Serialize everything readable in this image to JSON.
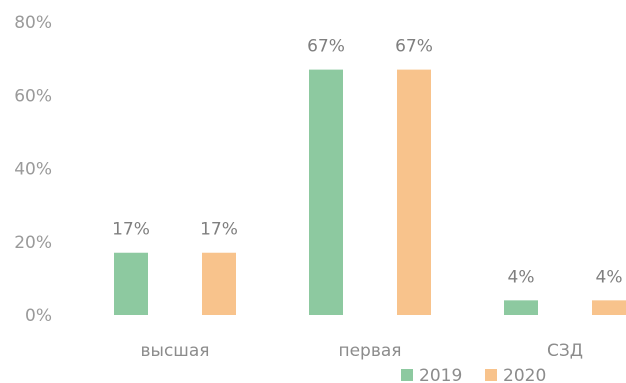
{
  "chart_data": {
    "type": "bar",
    "title": "",
    "xlabel": "",
    "ylabel": "",
    "categories": [
      "высшая",
      "первая",
      "СЗД"
    ],
    "series": [
      {
        "name": "2019",
        "values": [
          17,
          67,
          4
        ],
        "labels": [
          "17%",
          "67%",
          "4%"
        ],
        "color": "#8dc9a0"
      },
      {
        "name": "2020",
        "values": [
          17,
          67,
          4
        ],
        "labels": [
          "17%",
          "67%",
          "4%"
        ],
        "color": "#f8c38c"
      }
    ],
    "ylim": [
      0,
      80
    ],
    "yticks": [
      0,
      20,
      40,
      60,
      80
    ],
    "ytick_labels": [
      "0%",
      "20%",
      "40%",
      "60%",
      "80%"
    ],
    "grid": false,
    "legend_position": "bottom-right"
  }
}
